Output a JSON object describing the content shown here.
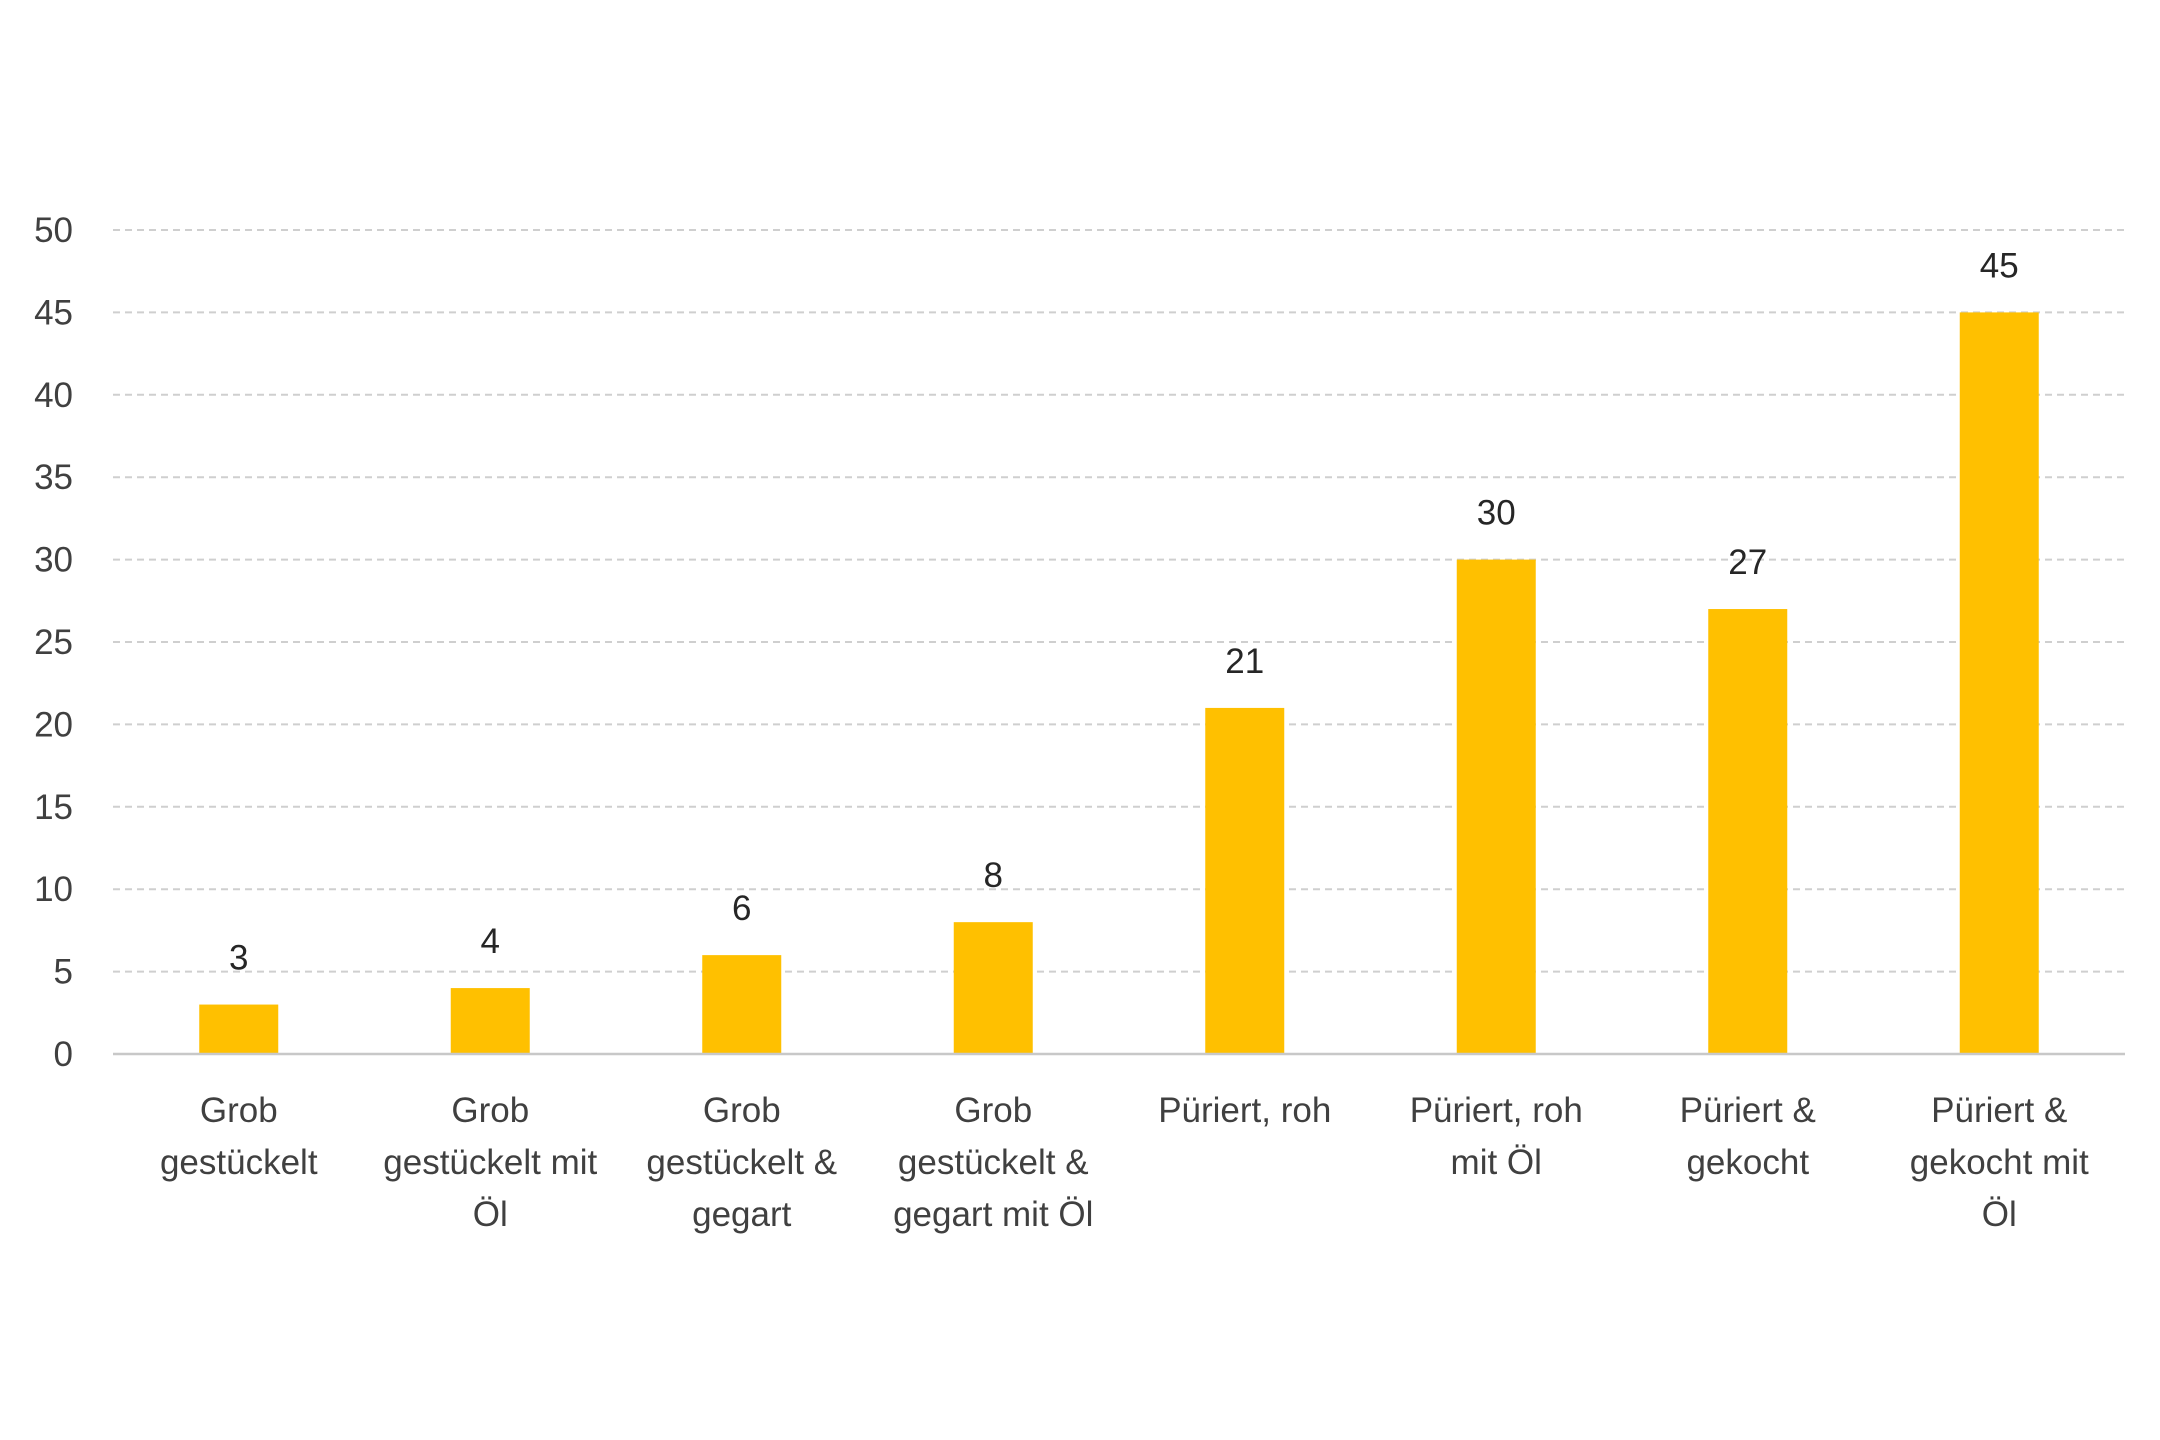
{
  "chart_data": {
    "type": "bar",
    "title": "",
    "xlabel": "",
    "ylabel": "",
    "categories": [
      [
        "Grob",
        "gestückelt"
      ],
      [
        "Grob",
        "gestückelt mit",
        "Öl"
      ],
      [
        "Grob",
        "gestückelt &",
        "gegart"
      ],
      [
        "Grob",
        "gestückelt &",
        "gegart mit Öl"
      ],
      [
        "Püriert, roh"
      ],
      [
        "Püriert, roh",
        "mit Öl"
      ],
      [
        "Püriert &",
        "gekocht"
      ],
      [
        "Püriert &",
        "gekocht mit",
        "Öl"
      ]
    ],
    "values": [
      3,
      4,
      6,
      8,
      21,
      30,
      27,
      45
    ],
    "ylim": [
      0,
      50
    ],
    "yticks": [
      0,
      5,
      10,
      15,
      20,
      25,
      30,
      35,
      40,
      45,
      50
    ],
    "grid": true,
    "legend": "none",
    "data_labels": true,
    "bar_color": "#FFC000"
  }
}
